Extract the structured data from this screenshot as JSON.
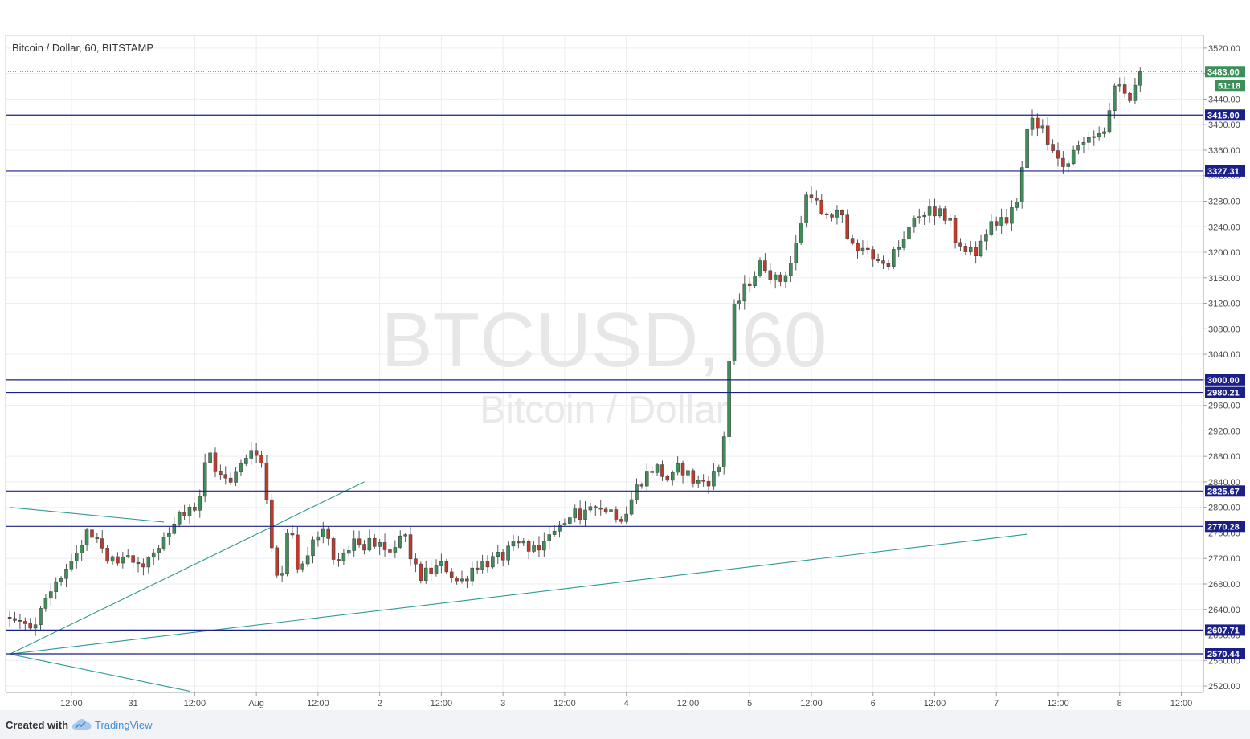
{
  "title": "Bitcoin / Dollar, 60, BITSTAMP",
  "watermark": {
    "line1": "BTCUSD, 60",
    "line2": "Bitcoin / Dollar"
  },
  "footer": {
    "created_with": "Created with",
    "brand": "TradingView"
  },
  "colors": {
    "up": "#3d8f5a",
    "down": "#c0392b",
    "level_line": "#1b1f8a",
    "trend_line": "#2e9b92",
    "last_price": "#3d8f5a",
    "grid": "#ebedf0"
  },
  "chart_data": {
    "type": "candlestick",
    "symbol": "BTCUSD",
    "interval": "60",
    "exchange": "BITSTAMP",
    "ylim": [
      2510,
      3540
    ],
    "y_ticks": [
      2520,
      2560,
      2600,
      2640,
      2680,
      2720,
      2760,
      2800,
      2840,
      2880,
      2920,
      2960,
      3000,
      3040,
      3080,
      3120,
      3160,
      3200,
      3240,
      3280,
      3320,
      3360,
      3400,
      3440,
      3480,
      3520
    ],
    "y_tick_labels": [
      "2520.00",
      "2560.00",
      "2600.00",
      "2640.00",
      "2680.00",
      "2720.00",
      "2760.00",
      "2800.00",
      "2840.00",
      "2880.00",
      "2920.00",
      "2960.00",
      "3000.00",
      "3040.00",
      "3080.00",
      "3120.00",
      "3160.00",
      "3200.00",
      "3240.00",
      "3280.00",
      "3320.00",
      "3360.00",
      "3400.00",
      "3440.00",
      "3480.00",
      "3520.00"
    ],
    "x_labels": [
      "12:00",
      "31",
      "12:00",
      "Aug",
      "12:00",
      "2",
      "12:00",
      "3",
      "12:00",
      "4",
      "12:00",
      "5",
      "12:00",
      "6",
      "12:00",
      "7",
      "12:00",
      "8",
      "12:00"
    ],
    "x_label_hours": [
      12,
      24,
      36,
      48,
      60,
      72,
      84,
      96,
      108,
      120,
      132,
      144,
      156,
      168,
      180,
      192,
      204,
      216,
      228
    ],
    "time_range_hours": [
      0,
      228
    ],
    "horizontal_levels": [
      3415.0,
      3327.31,
      3000.0,
      2980.21,
      2825.67,
      2770.28,
      2607.71,
      2570.44
    ],
    "horizontal_level_labels": [
      "3415.00",
      "3327.31",
      "3000.00",
      "2980.21",
      "2825.67",
      "2770.28",
      "2607.71",
      "2570.44"
    ],
    "last_price": 3483.0,
    "last_price_label": "3483.00",
    "countdown": "51:18",
    "trend_lines": [
      {
        "from": [
          0,
          2570
        ],
        "to": [
          69,
          2840
        ]
      },
      {
        "from": [
          0,
          2570
        ],
        "to": [
          198,
          2758
        ]
      },
      {
        "from": [
          0,
          2800
        ],
        "to": [
          30,
          2777
        ]
      },
      {
        "from": [
          0,
          2570
        ],
        "to": [
          35,
          2512
        ]
      }
    ],
    "waypoints": [
      [
        0,
        2628
      ],
      [
        3,
        2610
      ],
      [
        6,
        2625
      ],
      [
        9,
        2680
      ],
      [
        13,
        2722
      ],
      [
        16,
        2768
      ],
      [
        20,
        2720
      ],
      [
        26,
        2710
      ],
      [
        30,
        2735
      ],
      [
        33,
        2780
      ],
      [
        37,
        2800
      ],
      [
        39,
        2885
      ],
      [
        42,
        2840
      ],
      [
        45,
        2855
      ],
      [
        47,
        2892
      ],
      [
        50,
        2870
      ],
      [
        51,
        2770
      ],
      [
        53,
        2680
      ],
      [
        55,
        2780
      ],
      [
        57,
        2690
      ],
      [
        60,
        2755
      ],
      [
        62,
        2770
      ],
      [
        64,
        2715
      ],
      [
        68,
        2745
      ],
      [
        72,
        2740
      ],
      [
        74,
        2725
      ],
      [
        77,
        2758
      ],
      [
        80,
        2690
      ],
      [
        85,
        2710
      ],
      [
        88,
        2680
      ],
      [
        91,
        2710
      ],
      [
        96,
        2720
      ],
      [
        99,
        2740
      ],
      [
        104,
        2742
      ],
      [
        108,
        2770
      ],
      [
        111,
        2790
      ],
      [
        116,
        2800
      ],
      [
        120,
        2785
      ],
      [
        123,
        2840
      ],
      [
        126,
        2865
      ],
      [
        129,
        2840
      ],
      [
        131,
        2865
      ],
      [
        134,
        2838
      ],
      [
        137,
        2845
      ],
      [
        139,
        2870
      ],
      [
        140,
        2960
      ],
      [
        141,
        3100
      ],
      [
        144,
        3150
      ],
      [
        147,
        3185
      ],
      [
        150,
        3150
      ],
      [
        153,
        3190
      ],
      [
        155,
        3270
      ],
      [
        156,
        3305
      ],
      [
        159,
        3245
      ],
      [
        162,
        3270
      ],
      [
        164,
        3220
      ],
      [
        168,
        3195
      ],
      [
        170,
        3175
      ],
      [
        174,
        3210
      ],
      [
        177,
        3255
      ],
      [
        180,
        3270
      ],
      [
        183,
        3255
      ],
      [
        185,
        3210
      ],
      [
        188,
        3195
      ],
      [
        191,
        3240
      ],
      [
        193,
        3238
      ],
      [
        195,
        3262
      ],
      [
        197,
        3280
      ],
      [
        198,
        3365
      ],
      [
        199,
        3410
      ],
      [
        202,
        3385
      ],
      [
        205,
        3335
      ],
      [
        208,
        3362
      ],
      [
        211,
        3395
      ],
      [
        213,
        3375
      ],
      [
        214,
        3410
      ],
      [
        216,
        3465
      ],
      [
        218,
        3430
      ],
      [
        220,
        3483
      ]
    ]
  }
}
